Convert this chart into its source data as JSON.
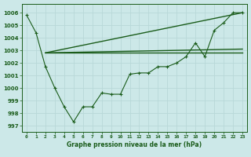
{
  "background_color": "#cce8e8",
  "grid_color": "#b0d8d8",
  "line_color": "#1a5c1a",
  "title": "Graphe pression niveau de la mer (hPa)",
  "ylim": [
    996.5,
    1006.7
  ],
  "xlim": [
    -0.5,
    23.5
  ],
  "yticks": [
    997,
    998,
    999,
    1000,
    1001,
    1002,
    1003,
    1004,
    1005,
    1006
  ],
  "xticks": [
    0,
    1,
    2,
    3,
    4,
    5,
    6,
    7,
    8,
    9,
    10,
    11,
    12,
    13,
    14,
    15,
    16,
    17,
    18,
    19,
    20,
    21,
    22,
    23
  ],
  "series1": {
    "x": [
      0,
      1,
      2,
      3,
      4,
      5,
      6,
      7,
      8,
      9,
      10,
      11,
      12,
      13,
      14,
      15,
      16,
      17,
      18,
      19,
      20,
      21,
      22,
      23
    ],
    "y": [
      1005.8,
      1004.4,
      1001.7,
      1000.0,
      998.5,
      997.3,
      998.5,
      998.5,
      999.6,
      999.5,
      999.5,
      1001.1,
      1001.2,
      1001.2,
      1001.7,
      1001.7,
      1002.0,
      1002.5,
      1003.6,
      1002.5,
      1004.6,
      1005.2,
      1006.0,
      1006.0
    ]
  },
  "line1": {
    "x": [
      2,
      23
    ],
    "y": [
      1002.8,
      1002.8
    ]
  },
  "line2": {
    "x": [
      2,
      23
    ],
    "y": [
      1002.8,
      1006.0
    ]
  },
  "line3": {
    "x": [
      2,
      23
    ],
    "y": [
      1002.8,
      1003.1
    ]
  }
}
